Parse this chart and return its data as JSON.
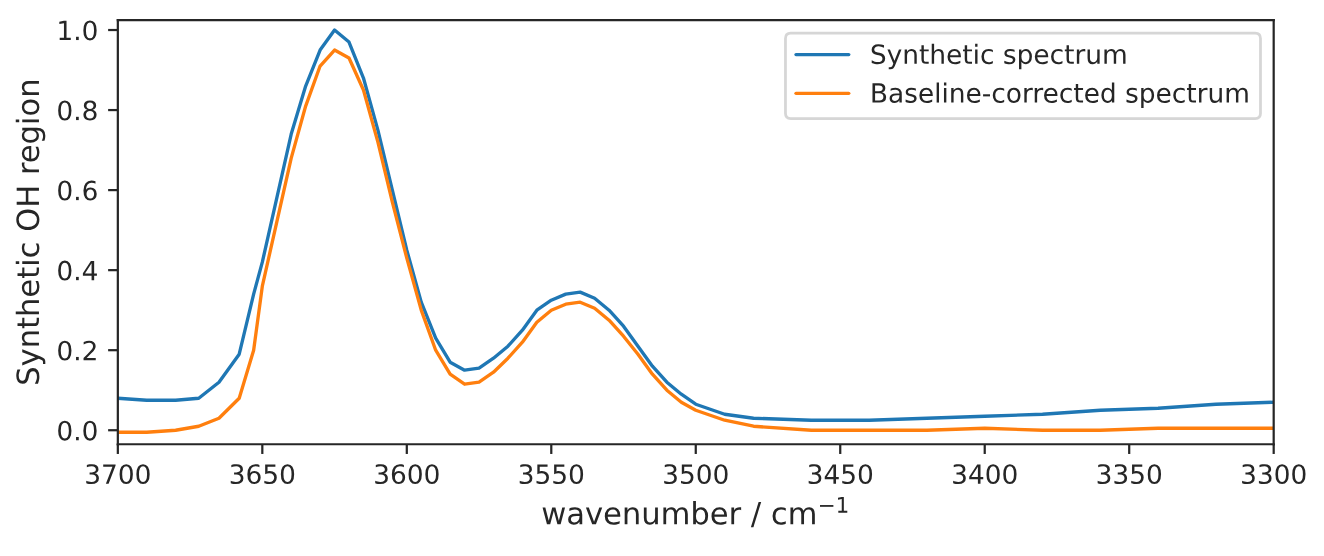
{
  "chart_data": {
    "type": "line",
    "xlabel": "wavenumber / cm$^{−1}$",
    "ylabel": "Synthetic OH region",
    "xlim": [
      3700,
      3300
    ],
    "xticks": [
      3700,
      3650,
      3600,
      3550,
      3500,
      3450,
      3400,
      3350,
      3300
    ],
    "ylim": [
      -0.035,
      1.025
    ],
    "yticks": [
      {
        "value": 0,
        "label": "0.0"
      },
      {
        "value": 0.2,
        "label": "0.2"
      },
      {
        "value": 0.4,
        "label": "0.4"
      },
      {
        "value": 0.6,
        "label": "0.6"
      },
      {
        "value": 0.8,
        "label": "0.8"
      },
      {
        "value": 1,
        "label": "1.0"
      }
    ],
    "x": [
      3700,
      3690,
      3680,
      3672,
      3665,
      3658,
      3653,
      3650,
      3645,
      3640,
      3635,
      3630,
      3625,
      3620,
      3615,
      3610,
      3605,
      3600,
      3595,
      3590,
      3585,
      3580,
      3575,
      3570,
      3565,
      3560,
      3555,
      3550,
      3545,
      3540,
      3535,
      3530,
      3525,
      3520,
      3515,
      3510,
      3505,
      3500,
      3490,
      3480,
      3460,
      3440,
      3420,
      3400,
      3380,
      3360,
      3340,
      3320,
      3300
    ],
    "series": [
      {
        "name": "Synthetic spectrum",
        "color": "#1f77b4",
        "values": [
          0.08,
          0.075,
          0.075,
          0.08,
          0.12,
          0.19,
          0.34,
          0.42,
          0.58,
          0.74,
          0.86,
          0.95,
          1.0,
          0.97,
          0.88,
          0.75,
          0.6,
          0.45,
          0.32,
          0.23,
          0.17,
          0.15,
          0.155,
          0.18,
          0.21,
          0.25,
          0.3,
          0.325,
          0.34,
          0.345,
          0.33,
          0.3,
          0.26,
          0.21,
          0.16,
          0.12,
          0.09,
          0.065,
          0.04,
          0.03,
          0.025,
          0.025,
          0.03,
          0.035,
          0.04,
          0.05,
          0.055,
          0.065,
          0.07
        ]
      },
      {
        "name": "Baseline-corrected spectrum",
        "color": "#ff7f0e",
        "values": [
          -0.005,
          -0.005,
          0.0,
          0.01,
          0.03,
          0.08,
          0.2,
          0.36,
          0.52,
          0.68,
          0.81,
          0.91,
          0.95,
          0.93,
          0.85,
          0.72,
          0.57,
          0.43,
          0.3,
          0.2,
          0.14,
          0.115,
          0.12,
          0.145,
          0.18,
          0.22,
          0.27,
          0.3,
          0.315,
          0.32,
          0.305,
          0.275,
          0.235,
          0.19,
          0.14,
          0.1,
          0.07,
          0.05,
          0.025,
          0.01,
          0.0,
          0.0,
          0.0,
          0.005,
          0.0,
          0.0,
          0.005,
          0.005,
          0.005
        ]
      }
    ],
    "legend": "top right",
    "grid": false,
    "marker": "none",
    "line_style": "solid"
  }
}
